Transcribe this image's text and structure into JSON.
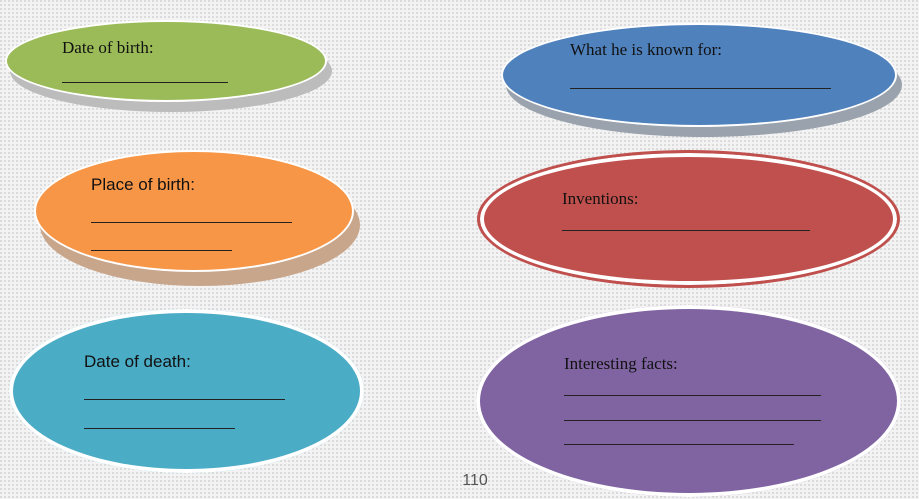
{
  "bubbles": {
    "date_of_birth": {
      "label": "Date of birth:"
    },
    "known_for": {
      "label": "What he is known for:"
    },
    "place_of_birth": {
      "label": "Place of birth:"
    },
    "inventions": {
      "label": "Inventions:"
    },
    "date_of_death": {
      "label": "Date of death:"
    },
    "interesting_facts": {
      "label": "Interesting facts:"
    }
  },
  "colors": {
    "green": "#9bbb59",
    "blue": "#4f81bd",
    "orange": "#f79646",
    "red": "#c0504d",
    "teal": "#4bacc6",
    "purple": "#8064a2"
  },
  "page_number": "110"
}
